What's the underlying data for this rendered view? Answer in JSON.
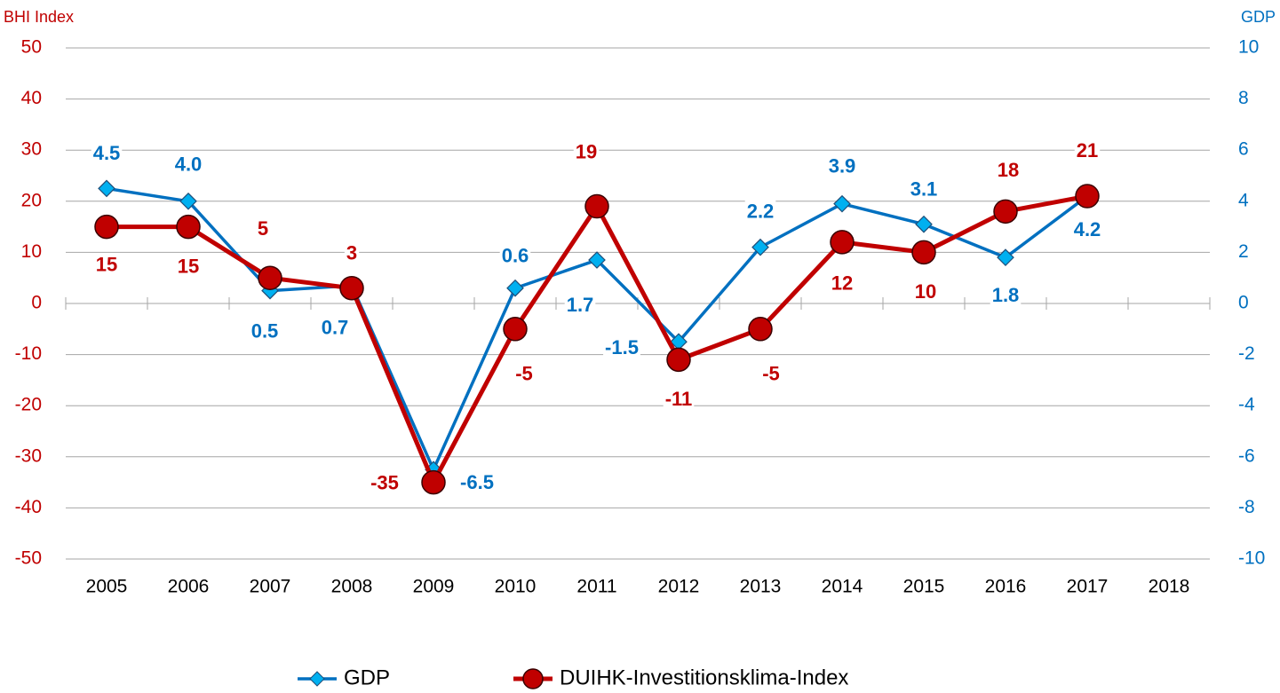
{
  "chart_data": {
    "type": "line",
    "y_label": "BHI Index",
    "y2_label": "GDP",
    "categories": [
      "2005",
      "2006",
      "2007",
      "2008",
      "2009",
      "2010",
      "2011",
      "2012",
      "2013",
      "2014",
      "2015",
      "2016",
      "2017",
      "2018"
    ],
    "series": [
      {
        "name": "GDP",
        "color": "#0070c0",
        "marker": "diamond",
        "marker_color": "#00b0f0",
        "axis": "y2",
        "values": [
          4.5,
          4.0,
          0.5,
          0.7,
          -6.5,
          0.6,
          1.7,
          -1.5,
          2.2,
          3.9,
          3.1,
          1.8,
          4.2,
          null
        ],
        "value_labels": [
          "4.5",
          "4.0",
          "0.5",
          "0.7",
          "-6.5",
          "0.6",
          "1.7",
          "-1.5",
          "2.2",
          "3.9",
          "3.1",
          "1.8",
          "4.2",
          null
        ]
      },
      {
        "name": "DUIHK-Investitionsklima-Index",
        "color": "#c00000",
        "marker": "circle",
        "marker_color": "#c00000",
        "values": [
          15,
          15,
          5,
          3,
          -35,
          -5,
          19,
          -11,
          -5,
          12,
          10,
          18,
          21,
          null
        ]
      }
    ],
    "ylim": [
      -50,
      50
    ],
    "yticks": [
      -50,
      -40,
      -30,
      -20,
      -10,
      0,
      10,
      20,
      30,
      40,
      50
    ],
    "y2lim": [
      -10,
      10
    ],
    "y2ticks": [
      -10,
      -8,
      -6,
      -4,
      -2,
      0,
      2,
      4,
      6,
      8,
      10
    ],
    "grid": true,
    "legend": "bottom"
  }
}
